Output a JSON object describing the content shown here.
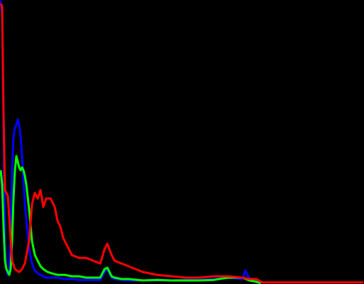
{
  "chart_data": {
    "type": "line",
    "title": "",
    "xlabel": "",
    "ylabel": "",
    "xlim": [
      0,
      255
    ],
    "ylim": [
      0,
      1
    ],
    "grid": false,
    "legend": "none",
    "background": "#000000",
    "series": [
      {
        "color": "#0000ff",
        "x": [
          0,
          1,
          2,
          3,
          4,
          5,
          6,
          7,
          8,
          9,
          10,
          11,
          12,
          13,
          14,
          15,
          17,
          20,
          22,
          24,
          26,
          28,
          30,
          32,
          35,
          40,
          45,
          50,
          55,
          60,
          65,
          70,
          73,
          75,
          78,
          80,
          85,
          90,
          100,
          110,
          120,
          130,
          140,
          150,
          160,
          170,
          172,
          175,
          180,
          183
        ],
        "y": [
          1.0,
          0.95,
          0.55,
          0.15,
          0.05,
          0.03,
          0.05,
          0.15,
          0.4,
          0.52,
          0.55,
          0.56,
          0.58,
          0.56,
          0.52,
          0.45,
          0.28,
          0.12,
          0.07,
          0.045,
          0.035,
          0.03,
          0.025,
          0.02,
          0.02,
          0.02,
          0.015,
          0.015,
          0.012,
          0.012,
          0.012,
          0.012,
          0.04,
          0.05,
          0.02,
          0.015,
          0.012,
          0.01,
          0.01,
          0.01,
          0.01,
          0.012,
          0.012,
          0.015,
          0.02,
          0.015,
          0.045,
          0.015,
          0.008,
          0.0
        ]
      },
      {
        "color": "#00ff00",
        "x": [
          0,
          1,
          2,
          3,
          4,
          5,
          6,
          7,
          8,
          9,
          10,
          11,
          12,
          13,
          14,
          15,
          16,
          17,
          18,
          20,
          22,
          24,
          26,
          28,
          30,
          33,
          36,
          40,
          45,
          50,
          55,
          60,
          65,
          70,
          73,
          75,
          78,
          80,
          85,
          90,
          100,
          110,
          120,
          130,
          140,
          150,
          160,
          170,
          175,
          180,
          183
        ],
        "y": [
          0.4,
          0.35,
          0.2,
          0.08,
          0.05,
          0.04,
          0.03,
          0.05,
          0.15,
          0.3,
          0.4,
          0.45,
          0.43,
          0.41,
          0.4,
          0.41,
          0.4,
          0.38,
          0.35,
          0.26,
          0.15,
          0.1,
          0.08,
          0.06,
          0.05,
          0.04,
          0.035,
          0.03,
          0.03,
          0.025,
          0.025,
          0.02,
          0.02,
          0.02,
          0.05,
          0.055,
          0.025,
          0.02,
          0.015,
          0.015,
          0.01,
          0.012,
          0.01,
          0.01,
          0.01,
          0.012,
          0.02,
          0.02,
          0.01,
          0.005,
          0.0
        ]
      },
      {
        "color": "#ff0000",
        "x": [
          0,
          1,
          2,
          3,
          5,
          8,
          10,
          13,
          15,
          17,
          20,
          22,
          24,
          26,
          28,
          30,
          32,
          35,
          38,
          40,
          42,
          44,
          46,
          48,
          50,
          55,
          60,
          65,
          70,
          73,
          75,
          78,
          80,
          85,
          90,
          95,
          100,
          110,
          120,
          130,
          140,
          150,
          160,
          170,
          175,
          180,
          183,
          185,
          190,
          200,
          220,
          240,
          255
        ],
        "y": [
          0.99,
          0.98,
          0.6,
          0.33,
          0.31,
          0.08,
          0.05,
          0.04,
          0.05,
          0.07,
          0.15,
          0.28,
          0.32,
          0.3,
          0.33,
          0.27,
          0.3,
          0.3,
          0.27,
          0.22,
          0.2,
          0.16,
          0.14,
          0.12,
          0.1,
          0.09,
          0.09,
          0.08,
          0.07,
          0.12,
          0.14,
          0.1,
          0.08,
          0.07,
          0.06,
          0.05,
          0.04,
          0.03,
          0.025,
          0.02,
          0.02,
          0.025,
          0.025,
          0.02,
          0.015,
          0.015,
          0.005,
          0.003,
          0.003,
          0.003,
          0.003,
          0.003,
          0.003
        ]
      }
    ]
  }
}
